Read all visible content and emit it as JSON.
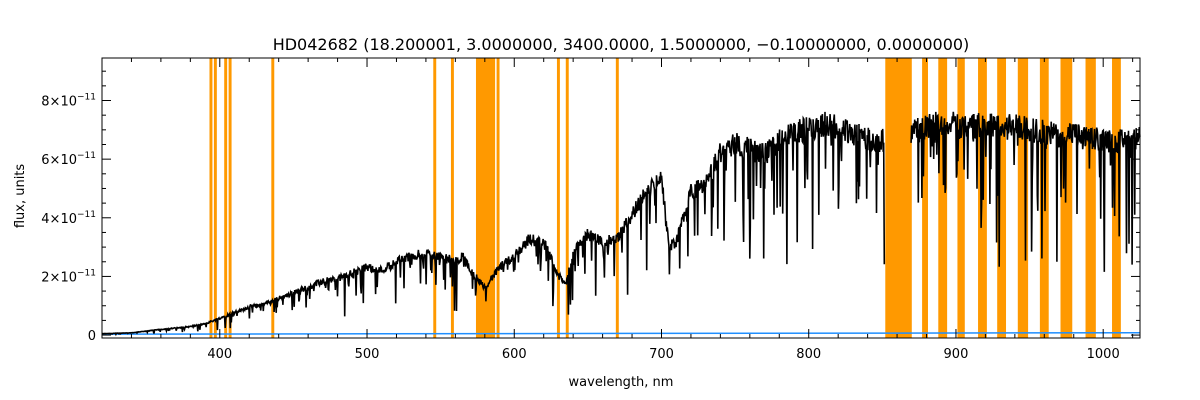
{
  "chart_data": {
    "type": "line",
    "title": "HD042682   (18.200001, 3.0000000, 3400.0000, 1.5000000, −0.10000000, 0.0000000)",
    "xlabel": "wavelength, nm",
    "ylabel": "flux, units",
    "xlim": [
      320,
      1025
    ],
    "ylim": [
      -1e-12,
      9.45e-11
    ],
    "x_ticks": [
      400,
      500,
      600,
      700,
      800,
      900,
      1000
    ],
    "x_minor_step": 20,
    "y_ticks": [
      {
        "value": 0,
        "mantissa": "0",
        "exponent": ""
      },
      {
        "value": 2e-11,
        "mantissa": "2×10",
        "exponent": "−11"
      },
      {
        "value": 4e-11,
        "mantissa": "4×10",
        "exponent": "−11"
      },
      {
        "value": 6e-11,
        "mantissa": "6×10",
        "exponent": "−11"
      },
      {
        "value": 8e-11,
        "mantissa": "8×10",
        "exponent": "−11"
      }
    ],
    "y_minor_step": 5e-12,
    "grid": false,
    "colors": {
      "spectrum": "#000000",
      "error": "#1f8fff",
      "mask": "#ff9900"
    },
    "series": [
      {
        "role": "spectrum",
        "x": [
          320,
          340,
          360,
          380,
          390,
          400,
          410,
          420,
          430,
          440,
          450,
          460,
          470,
          480,
          490,
          500,
          510,
          520,
          530,
          540,
          550,
          560,
          565,
          570,
          580,
          590,
          600,
          610,
          620,
          630,
          635,
          640,
          650,
          660,
          670,
          680,
          690,
          700,
          705,
          710,
          720,
          730,
          740,
          750,
          760,
          770,
          780,
          790,
          800,
          810,
          820,
          830,
          840,
          850,
          855,
          870,
          880,
          890,
          900,
          910,
          920,
          930,
          940,
          950,
          960,
          970,
          980,
          990,
          1000,
          1010,
          1020,
          1025
        ],
        "y": [
          5e-13,
          8e-13,
          2e-12,
          3e-12,
          4e-12,
          6e-12,
          8e-12,
          1e-11,
          1.1e-11,
          1.3e-11,
          1.5e-11,
          1.7e-11,
          1.9e-11,
          2e-11,
          2.2e-11,
          2.4e-11,
          2.3e-11,
          2.6e-11,
          2.8e-11,
          2.9e-11,
          2.8e-11,
          2.6e-11,
          2.8e-11,
          2.3e-11,
          1.7e-11,
          2.4e-11,
          2.8e-11,
          3.4e-11,
          3.3e-11,
          2.1e-11,
          1.8e-11,
          2.9e-11,
          3.6e-11,
          3.3e-11,
          3.4e-11,
          4.3e-11,
          5.1e-11,
          5.5e-11,
          3.2e-11,
          3.3e-11,
          5.1e-11,
          5.3e-11,
          6.5e-11,
          6.8e-11,
          6.6e-11,
          6.4e-11,
          6.9e-11,
          7.2e-11,
          7.3e-11,
          7.5e-11,
          7.4e-11,
          7.2e-11,
          7e-11,
          6.9e-11,
          6.8e-11,
          7.2e-11,
          7.4e-11,
          7.5e-11,
          7.5e-11,
          7.4e-11,
          7.5e-11,
          7.4e-11,
          7.4e-11,
          7.3e-11,
          7.2e-11,
          7.1e-11,
          7.1e-11,
          7e-11,
          6.9e-11,
          6.9e-11,
          6.9e-11,
          7e-11
        ]
      },
      {
        "role": "error",
        "x": [
          320,
          1025
        ],
        "y": [
          3e-13,
          8e-13
        ]
      }
    ],
    "masked_regions": [
      [
        393,
        395
      ],
      [
        396,
        398
      ],
      [
        403,
        405
      ],
      [
        406,
        408
      ],
      [
        435,
        437
      ],
      [
        545,
        547
      ],
      [
        557,
        559
      ],
      [
        574,
        587
      ],
      [
        588,
        590
      ],
      [
        629,
        631
      ],
      [
        635,
        637
      ],
      [
        669,
        671
      ],
      [
        852,
        870
      ],
      [
        877,
        881
      ],
      [
        888,
        894
      ],
      [
        901,
        906
      ],
      [
        915,
        921
      ],
      [
        928,
        934
      ],
      [
        942,
        949
      ],
      [
        957,
        963
      ],
      [
        971,
        979
      ],
      [
        988,
        995
      ],
      [
        1006,
        1012
      ]
    ]
  }
}
